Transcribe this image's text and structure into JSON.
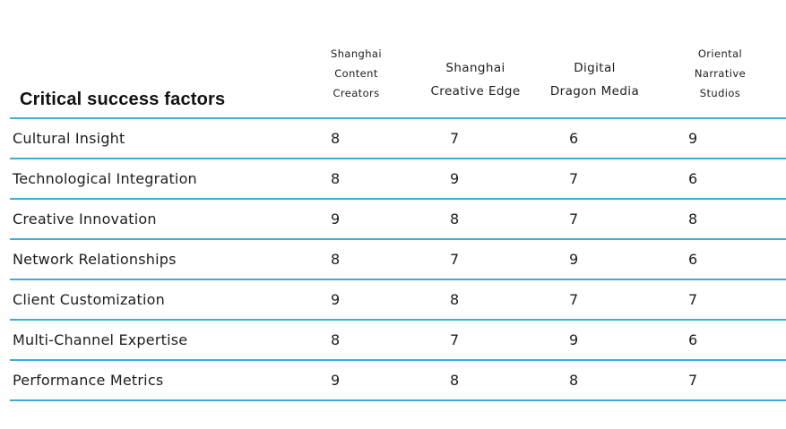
{
  "chart_data": {
    "type": "table",
    "title": "Critical success factors",
    "columns": [
      {
        "name": "Shanghai Content Creators",
        "lines": [
          "Shanghai",
          "Content",
          "Creators"
        ],
        "size": "small"
      },
      {
        "name": "Shanghai Creative Edge",
        "lines": [
          "Shanghai",
          "Creative Edge"
        ],
        "size": "large"
      },
      {
        "name": "Digital Dragon Media",
        "lines": [
          "Digital",
          "Dragon Media"
        ],
        "size": "large"
      },
      {
        "name": "Oriental Narrative Studios",
        "lines": [
          "Oriental",
          "Narrative",
          "Studios"
        ],
        "size": "small"
      }
    ],
    "rows": [
      {
        "factor": "Cultural Insight",
        "values": [
          8,
          7,
          6,
          9
        ]
      },
      {
        "factor": "Technological Integration",
        "values": [
          8,
          9,
          7,
          6
        ]
      },
      {
        "factor": "Creative Innovation",
        "values": [
          9,
          8,
          7,
          8
        ]
      },
      {
        "factor": "Network Relationships",
        "values": [
          8,
          7,
          9,
          6
        ]
      },
      {
        "factor": "Client Customization",
        "values": [
          9,
          8,
          7,
          7
        ]
      },
      {
        "factor": "Multi-Channel Expertise",
        "values": [
          8,
          7,
          9,
          6
        ]
      },
      {
        "factor": "Performance Metrics",
        "values": [
          9,
          8,
          8,
          7
        ]
      }
    ],
    "layout": {
      "grid": "horizontal-rules-only",
      "legend": "none",
      "value_range": [
        6,
        9
      ]
    }
  },
  "colors": {
    "rule": "#3caed6",
    "text": "#1d1d1d",
    "title": "#111111",
    "background": "#ffffff"
  }
}
